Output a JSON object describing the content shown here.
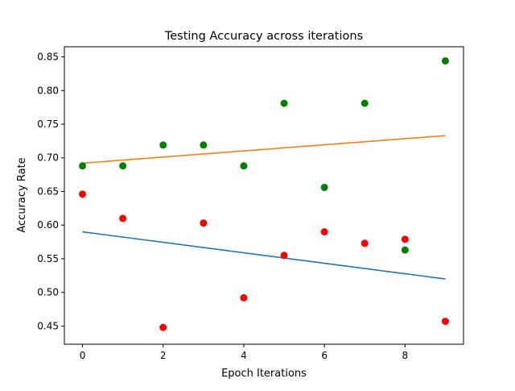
{
  "chart_data": {
    "type": "scatter",
    "title": "Testing Accuracy across iterations",
    "xlabel": "Epoch Iterations",
    "ylabel": "Accuracy Rate",
    "xlim": [
      -0.45,
      9.45
    ],
    "ylim": [
      0.423,
      0.865
    ],
    "x_ticks": [
      0,
      2,
      4,
      6,
      8
    ],
    "x_tick_labels": [
      "0",
      "2",
      "4",
      "6",
      "8"
    ],
    "y_ticks": [
      0.45,
      0.5,
      0.55,
      0.6,
      0.65,
      0.7,
      0.75,
      0.8,
      0.85
    ],
    "y_tick_labels": [
      "0.45",
      "0.50",
      "0.55",
      "0.60",
      "0.65",
      "0.70",
      "0.75",
      "0.80",
      "0.85"
    ],
    "grid": false,
    "legend": false,
    "series": [
      {
        "kind": "scatter",
        "color": "#ff0000",
        "x": [
          0,
          1,
          2,
          3,
          4,
          5,
          6,
          7,
          8,
          9
        ],
        "y": [
          0.646,
          0.61,
          0.448,
          0.603,
          0.492,
          0.555,
          0.59,
          0.573,
          0.579,
          0.457
        ]
      },
      {
        "kind": "scatter",
        "color": "#008000",
        "x": [
          0,
          1,
          2,
          3,
          4,
          5,
          6,
          7,
          8,
          9
        ],
        "y": [
          0.688,
          0.688,
          0.719,
          0.719,
          0.688,
          0.781,
          0.656,
          0.781,
          0.563,
          0.844
        ]
      },
      {
        "kind": "line",
        "color": "#1f77b4",
        "x": [
          0,
          9
        ],
        "y": [
          0.59,
          0.52
        ]
      },
      {
        "kind": "line",
        "color": "#ff7f0e",
        "x": [
          0,
          9
        ],
        "y": [
          0.692,
          0.733
        ]
      }
    ]
  }
}
